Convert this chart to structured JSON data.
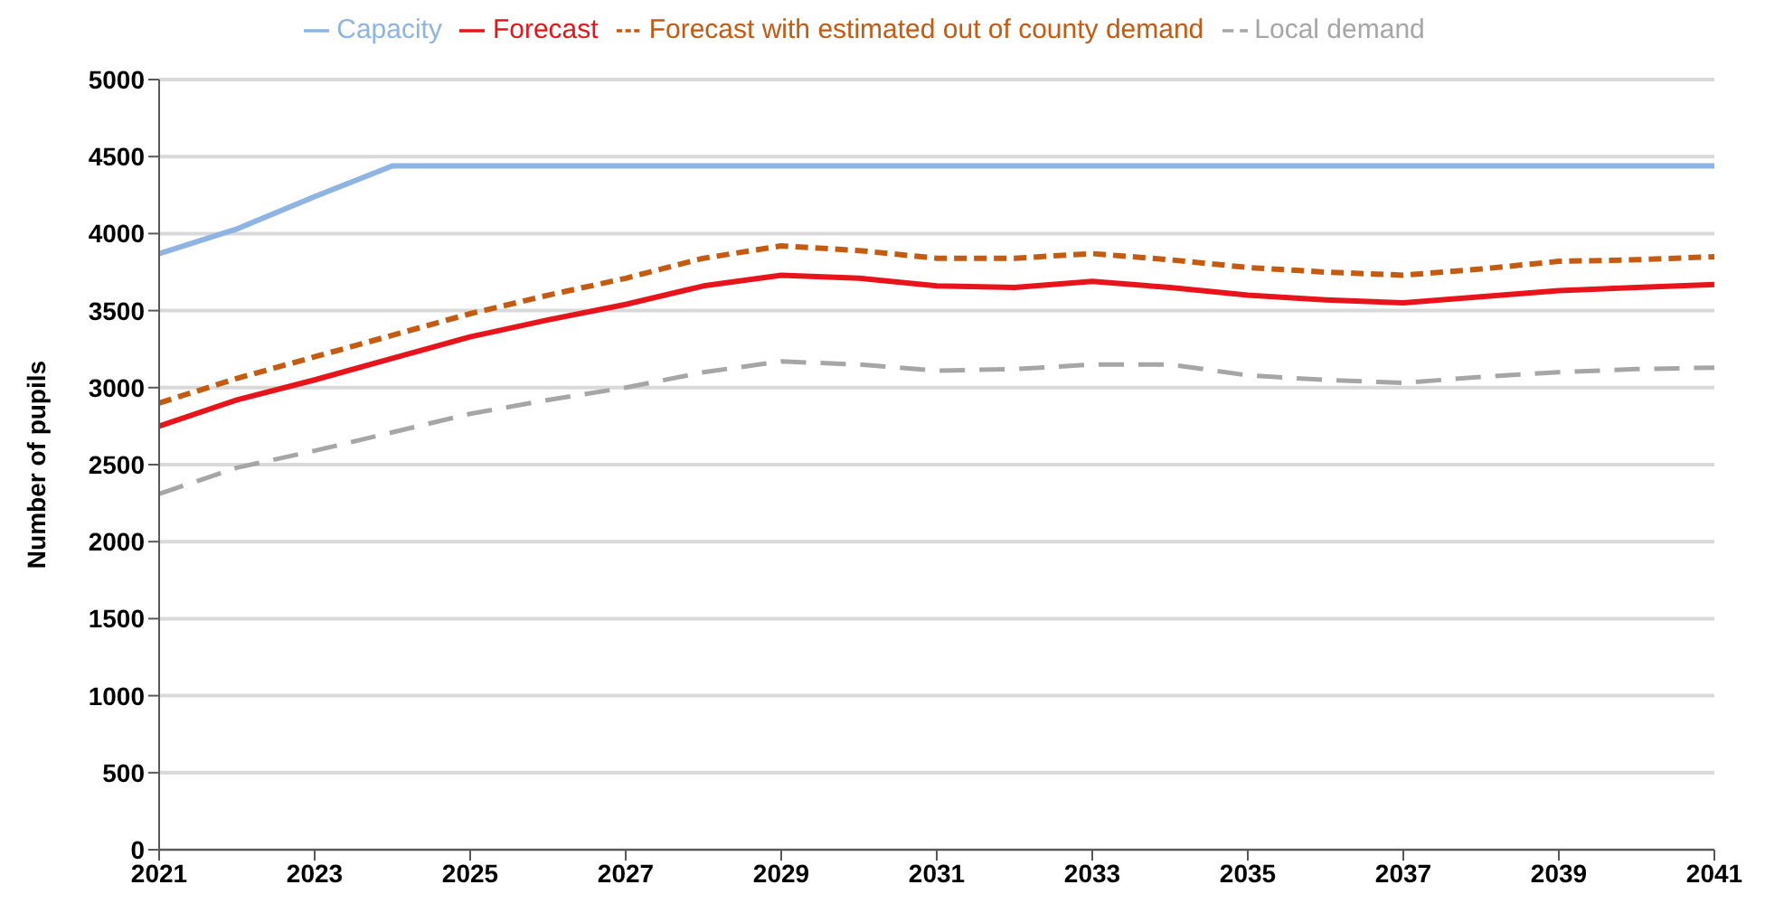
{
  "chart_data": {
    "type": "line",
    "ylabel": "Number of pupils",
    "x": [
      2021,
      2022,
      2023,
      2024,
      2025,
      2026,
      2027,
      2028,
      2029,
      2030,
      2031,
      2032,
      2033,
      2034,
      2035,
      2036,
      2037,
      2038,
      2039,
      2040,
      2041
    ],
    "xlim": [
      2021,
      2041
    ],
    "xticks": [
      2021,
      2023,
      2025,
      2027,
      2029,
      2031,
      2033,
      2035,
      2037,
      2039,
      2041
    ],
    "ylim": [
      0,
      5000
    ],
    "yticks": [
      0,
      500,
      1000,
      1500,
      2000,
      2500,
      3000,
      3500,
      4000,
      4500,
      5000
    ],
    "grid": "y",
    "legend": "top",
    "marker": "none",
    "series": [
      {
        "name": "Forecast",
        "color": "#e8141b",
        "line_style": "solid",
        "values": [
          2750,
          2920,
          3050,
          3190,
          3330,
          3440,
          3540,
          3660,
          3730,
          3710,
          3660,
          3650,
          3690,
          3650,
          3600,
          3570,
          3550,
          3590,
          3630,
          3650,
          3670
        ]
      },
      {
        "name": "Capacity",
        "color": "#8db4e2",
        "line_style": "solid",
        "values": [
          3870,
          4030,
          4240,
          4440,
          4440,
          4440,
          4440,
          4440,
          4440,
          4440,
          4440,
          4440,
          4440,
          4440,
          4440,
          4440,
          4440,
          4440,
          4440,
          4440,
          4440
        ]
      },
      {
        "name": "Local demand",
        "color": "#a6a6a6",
        "line_style": "dashed",
        "values": [
          2310,
          2480,
          2590,
          2710,
          2830,
          2920,
          3000,
          3100,
          3170,
          3150,
          3110,
          3120,
          3150,
          3150,
          3080,
          3050,
          3030,
          3070,
          3100,
          3120,
          3130
        ]
      },
      {
        "name": "Forecast with estimated out of county demand",
        "color": "#c55a11",
        "line_style": "dotted",
        "values": [
          2900,
          3060,
          3200,
          3340,
          3480,
          3600,
          3710,
          3840,
          3920,
          3890,
          3840,
          3840,
          3870,
          3830,
          3780,
          3750,
          3730,
          3770,
          3820,
          3830,
          3850
        ]
      }
    ]
  }
}
